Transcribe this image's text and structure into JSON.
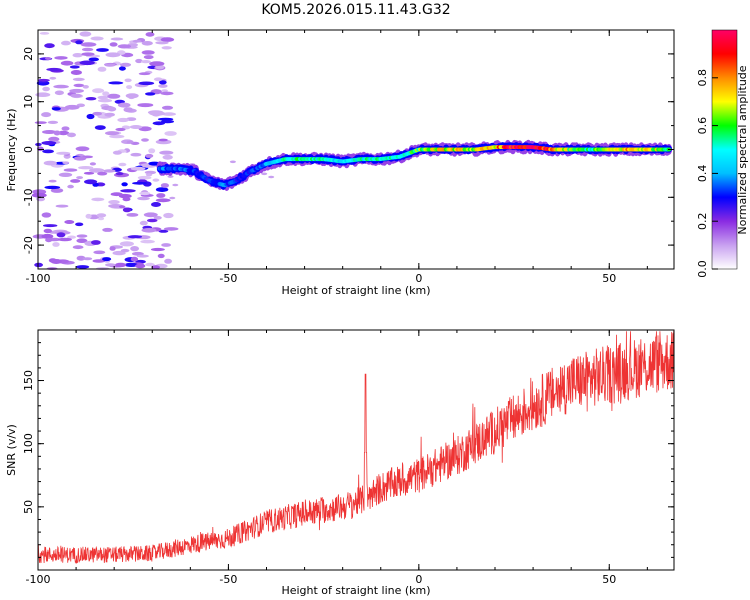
{
  "title": "KOM5.2026.015.11.43.G32",
  "chart_data": [
    {
      "type": "heatmap",
      "xlabel": "Height of straight line (km)",
      "ylabel": "Frequency (Hz)",
      "xlim": [
        -100,
        67
      ],
      "ylim": [
        -25,
        25
      ],
      "xticks": [
        -100,
        -50,
        0,
        50
      ],
      "yticks": [
        -20,
        -10,
        0,
        10,
        20
      ],
      "colorbar": {
        "label": "Normalized spectral amplitude",
        "range": [
          0,
          1
        ],
        "ticks": [
          0.0,
          0.2,
          0.4,
          0.6,
          0.8
        ],
        "colors": [
          "#ffffff",
          "#c8a0f0",
          "#8a2be2",
          "#0000ff",
          "#00bfff",
          "#00ffff",
          "#00ff00",
          "#ffff00",
          "#ff8c00",
          "#ff0000",
          "#ff0066"
        ]
      },
      "ridge": [
        {
          "x": -68,
          "y": -4.0,
          "a": 0.35
        },
        {
          "x": -63,
          "y": -4.0,
          "a": 0.35
        },
        {
          "x": -59,
          "y": -4.5,
          "a": 0.3
        },
        {
          "x": -55,
          "y": -6.5,
          "a": 0.3
        },
        {
          "x": -51,
          "y": -7.5,
          "a": 0.35
        },
        {
          "x": -48,
          "y": -6.5,
          "a": 0.3
        },
        {
          "x": -44,
          "y": -4.5,
          "a": 0.3
        },
        {
          "x": -40,
          "y": -3.0,
          "a": 0.4
        },
        {
          "x": -35,
          "y": -2.0,
          "a": 0.5
        },
        {
          "x": -30,
          "y": -2.0,
          "a": 0.55
        },
        {
          "x": -25,
          "y": -2.0,
          "a": 0.5
        },
        {
          "x": -20,
          "y": -2.5,
          "a": 0.45
        },
        {
          "x": -15,
          "y": -2.0,
          "a": 0.5
        },
        {
          "x": -10,
          "y": -2.0,
          "a": 0.55
        },
        {
          "x": -5,
          "y": -1.5,
          "a": 0.5
        },
        {
          "x": 0,
          "y": 0.0,
          "a": 0.6
        },
        {
          "x": 5,
          "y": 0.0,
          "a": 0.7
        },
        {
          "x": 10,
          "y": 0.0,
          "a": 0.7
        },
        {
          "x": 15,
          "y": 0.0,
          "a": 0.65
        },
        {
          "x": 20,
          "y": 0.5,
          "a": 0.75
        },
        {
          "x": 25,
          "y": 0.5,
          "a": 0.95
        },
        {
          "x": 30,
          "y": 0.5,
          "a": 0.95
        },
        {
          "x": 35,
          "y": 0.0,
          "a": 0.8
        },
        {
          "x": 40,
          "y": 0.0,
          "a": 0.6
        },
        {
          "x": 45,
          "y": 0.0,
          "a": 0.55
        },
        {
          "x": 50,
          "y": 0.0,
          "a": 0.65
        },
        {
          "x": 55,
          "y": 0.0,
          "a": 0.75
        },
        {
          "x": 60,
          "y": 0.0,
          "a": 0.7
        },
        {
          "x": 66,
          "y": 0.0,
          "a": 0.6
        }
      ]
    },
    {
      "type": "line",
      "xlabel": "Height of straight line (km)",
      "ylabel": "SNR (v/v)",
      "xlim": [
        -100,
        67
      ],
      "ylim": [
        0,
        190
      ],
      "xticks": [
        -100,
        -50,
        0,
        50
      ],
      "yticks": [
        50,
        100,
        150
      ],
      "color": "#ee3333",
      "trend": [
        {
          "x": -100,
          "y": 12
        },
        {
          "x": -80,
          "y": 12
        },
        {
          "x": -70,
          "y": 13
        },
        {
          "x": -60,
          "y": 20
        },
        {
          "x": -50,
          "y": 25
        },
        {
          "x": -40,
          "y": 38
        },
        {
          "x": -30,
          "y": 45
        },
        {
          "x": -20,
          "y": 50
        },
        {
          "x": -15,
          "y": 55
        },
        {
          "x": -10,
          "y": 65
        },
        {
          "x": 0,
          "y": 75
        },
        {
          "x": 10,
          "y": 90
        },
        {
          "x": 20,
          "y": 110
        },
        {
          "x": 30,
          "y": 130
        },
        {
          "x": 40,
          "y": 148
        },
        {
          "x": 50,
          "y": 155
        },
        {
          "x": 60,
          "y": 162
        },
        {
          "x": 66,
          "y": 166
        }
      ],
      "spike": {
        "x": -14,
        "y": 155
      }
    }
  ]
}
